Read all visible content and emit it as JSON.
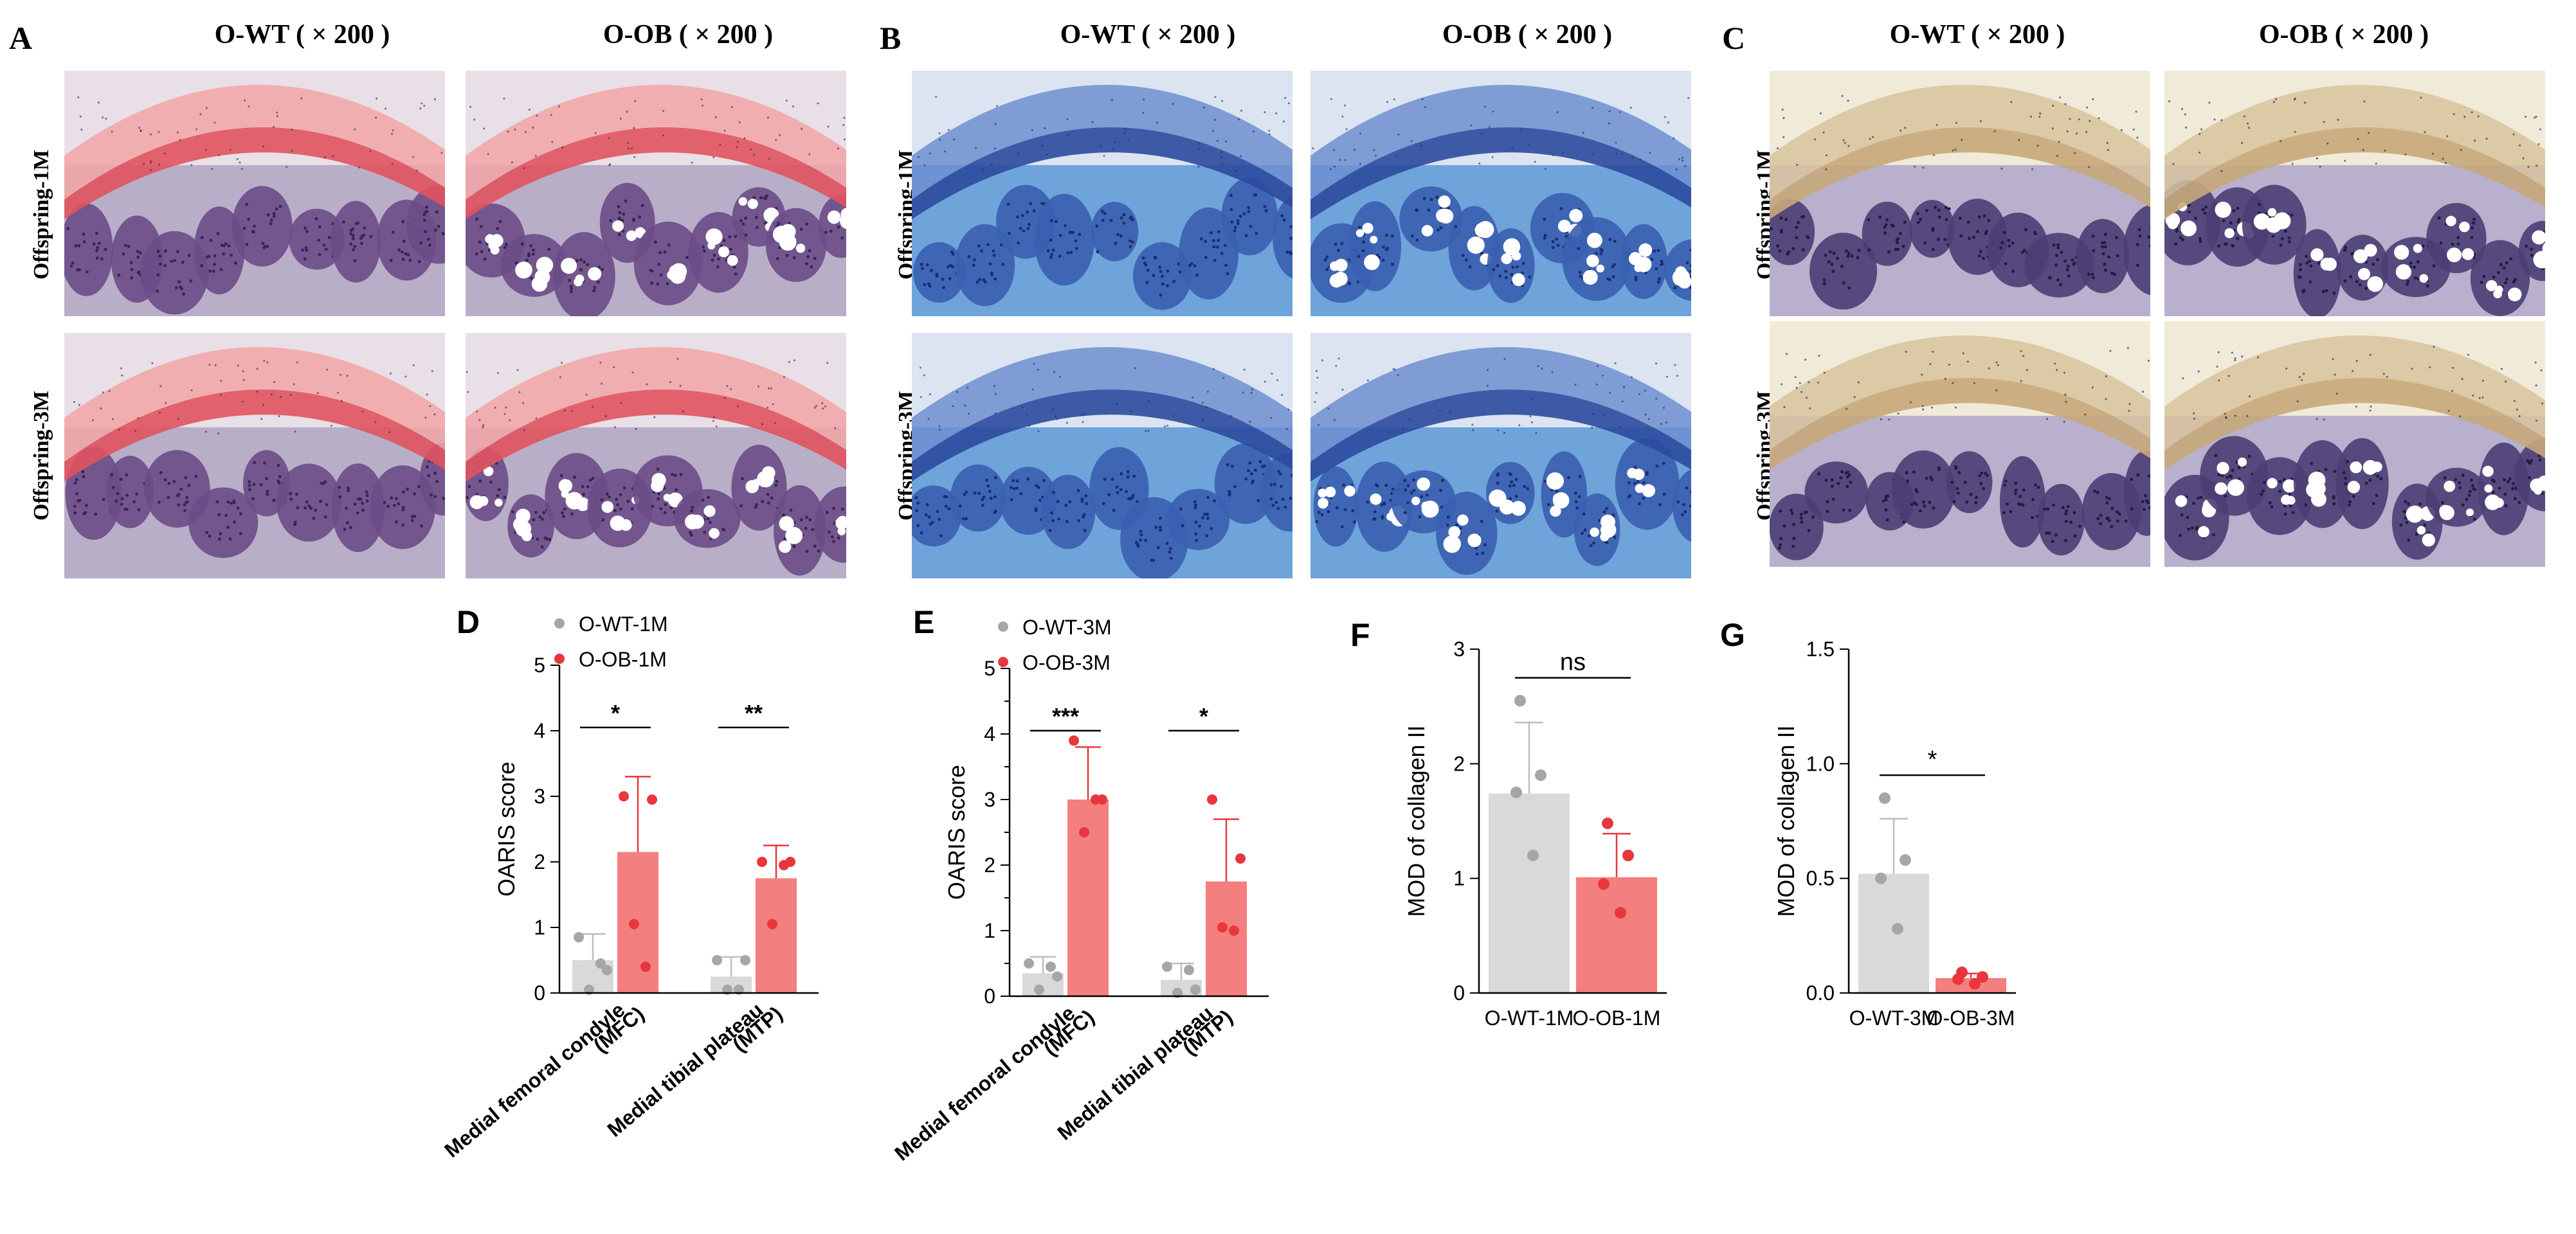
{
  "panels": {
    "A": {
      "letter": "A",
      "col_titles": [
        "O-WT ( × 200 )",
        "O-OB ( × 200 )"
      ],
      "row_labels": [
        "Offspring-1M",
        "Offspring-3M"
      ],
      "stain": "safranin"
    },
    "B": {
      "letter": "B",
      "col_titles": [
        "O-WT ( × 200 )",
        "O-OB ( × 200 )"
      ],
      "row_labels": [
        "Offspring-1M",
        "Offspring-3M"
      ],
      "stain": "toluidine"
    },
    "C": {
      "letter": "C",
      "col_titles": [
        "O-WT ( × 200 )",
        "O-OB ( × 200 )"
      ],
      "row_labels": [
        "Offspring-1M",
        "Offspring-3M"
      ],
      "stain": "ihc"
    }
  },
  "colors": {
    "wt_bar": "#d9d9d9",
    "wt_dot": "#a6a6a6",
    "ob_bar": "#f47f7f",
    "ob_dot": "#e8363c"
  },
  "chart_data": [
    {
      "id": "D",
      "letter": "D",
      "type": "bar",
      "legend": [
        "O-WT-1M",
        "O-OB-1M"
      ],
      "ylabel": "OARIS score",
      "ylim": [
        0,
        5
      ],
      "yticks": [
        "0",
        "1",
        "2",
        "3",
        "4",
        "5"
      ],
      "categories": [
        "Medial femoral condyle",
        "Medial tibial plateau"
      ],
      "category_sub": [
        "(MFC)",
        "(MTP)"
      ],
      "series": [
        {
          "name": "O-WT-1M",
          "values": [
            0.5,
            0.25
          ],
          "sd": [
            0.4,
            0.3
          ],
          "points": [
            [
              0.85,
              0.35,
              0.05,
              0.45
            ],
            [
              0.5,
              0.5,
              0.05,
              0.05
            ]
          ]
        },
        {
          "name": "O-OB-1M",
          "values": [
            2.15,
            1.75
          ],
          "sd": [
            1.15,
            0.5
          ],
          "points": [
            [
              3.0,
              2.95,
              1.05,
              0.4
            ],
            [
              2.0,
              2.0,
              1.05,
              1.95
            ]
          ]
        }
      ],
      "significance": [
        "*",
        "**"
      ]
    },
    {
      "id": "E",
      "letter": "E",
      "type": "bar",
      "legend": [
        "O-WT-3M",
        "O-OB-3M"
      ],
      "ylabel": "OARIS score",
      "ylim": [
        0,
        5
      ],
      "yticks": [
        "0",
        "0.5",
        "1",
        "1.5",
        "2",
        "2.5",
        "3",
        "3.5",
        "4",
        "4.5",
        "5"
      ],
      "categories": [
        "Medial femoral condyle",
        "Medial tibial plateau"
      ],
      "category_sub": [
        "(MFC)",
        "(MTP)"
      ],
      "series": [
        {
          "name": "O-WT-3M",
          "values": [
            0.35,
            0.25
          ],
          "sd": [
            0.25,
            0.25
          ],
          "points": [
            [
              0.5,
              0.3,
              0.1,
              0.45
            ],
            [
              0.45,
              0.1,
              0.05,
              0.4
            ]
          ]
        },
        {
          "name": "O-OB-3M",
          "values": [
            3.0,
            1.75
          ],
          "sd": [
            0.8,
            0.95
          ],
          "points": [
            [
              3.9,
              3.0,
              2.5,
              3.0
            ],
            [
              3.0,
              2.1,
              1.05,
              1.0
            ]
          ]
        }
      ],
      "significance": [
        "***",
        "*"
      ]
    },
    {
      "id": "F",
      "letter": "F",
      "type": "bar",
      "ylabel": "MOD of collagen II",
      "ylim": [
        0,
        3
      ],
      "yticks": [
        "0",
        "1",
        "2",
        "3"
      ],
      "categories": [
        "O-WT-1M",
        "O-OB-1M"
      ],
      "values": [
        1.74,
        1.01
      ],
      "sd": [
        0.62,
        0.38
      ],
      "points": [
        [
          2.55,
          1.9,
          1.75,
          1.2
        ],
        [
          1.48,
          1.2,
          0.95,
          0.7
        ]
      ],
      "significance": "ns"
    },
    {
      "id": "G",
      "letter": "G",
      "type": "bar",
      "ylabel": "MOD of collagen II",
      "ylim": [
        0,
        1.5
      ],
      "yticks": [
        "0.0",
        "0.5",
        "1.0",
        "1.5"
      ],
      "categories": [
        "O-WT-3M",
        "O-OB-3M"
      ],
      "values": [
        0.52,
        0.065
      ],
      "sd": [
        0.24,
        0.02
      ],
      "points": [
        [
          0.85,
          0.58,
          0.5,
          0.28
        ],
        [
          0.09,
          0.07,
          0.06,
          0.04
        ]
      ],
      "significance": "*"
    }
  ]
}
